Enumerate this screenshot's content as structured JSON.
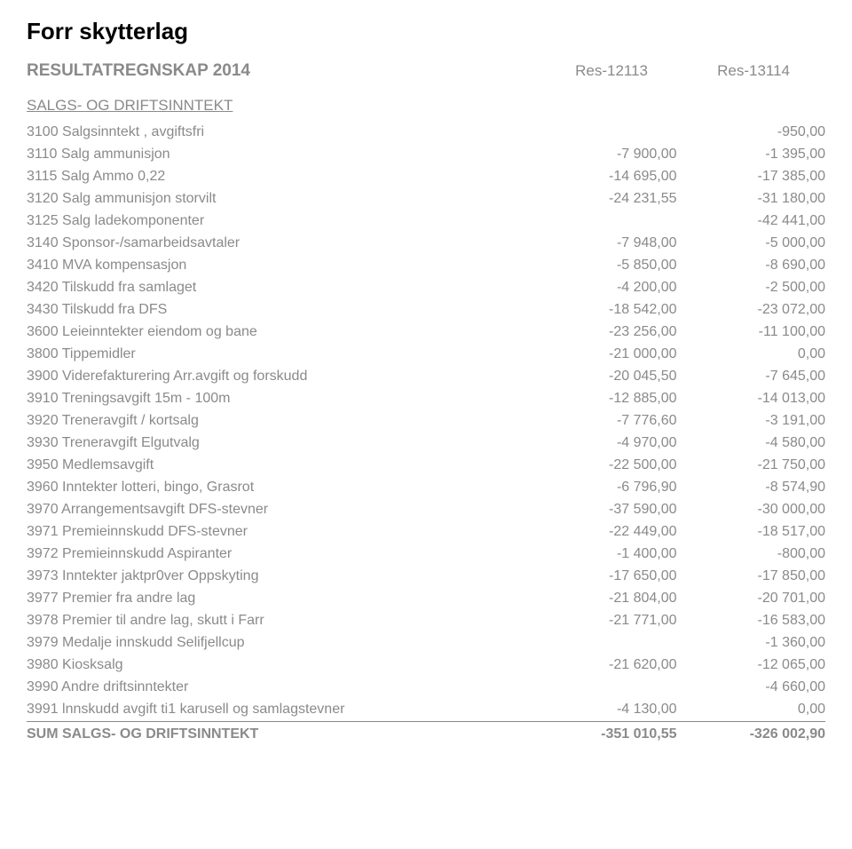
{
  "page_title": "Forr skytterlag",
  "report_title": "RESULTATREGNSKAP 2014",
  "col1": "Res-12113",
  "col2": "Res-13114",
  "section_title": "SALGS- OG DRIFTSINNTEKT",
  "rows": [
    {
      "label": "3100 Salgsinntekt , avgiftsfri",
      "v1": "",
      "v2": "-950,00"
    },
    {
      "label": "3110 Salg ammunisjon",
      "v1": "-7 900,00",
      "v2": "-1 395,00"
    },
    {
      "label": "3115 Salg Ammo 0,22",
      "v1": "-14 695,00",
      "v2": "-17 385,00"
    },
    {
      "label": "3120 Salg ammunisjon storvilt",
      "v1": "-24 231,55",
      "v2": "-31 180,00"
    },
    {
      "label": "3125 Salg ladekomponenter",
      "v1": "",
      "v2": "-42 441,00"
    },
    {
      "label": "3140 Sponsor-/samarbeidsavtaler",
      "v1": "-7 948,00",
      "v2": "-5 000,00"
    },
    {
      "label": "3410 MVA kompensasjon",
      "v1": "-5 850,00",
      "v2": "-8 690,00"
    },
    {
      "label": "3420 Tilskudd fra samlaget",
      "v1": "-4 200,00",
      "v2": "-2 500,00"
    },
    {
      "label": "3430 Tilskudd fra DFS",
      "v1": "-18 542,00",
      "v2": "-23 072,00"
    },
    {
      "label": "3600 Leieinntekter eiendom og bane",
      "v1": "-23 256,00",
      "v2": "-11 100,00"
    },
    {
      "label": "3800 Tippemidler",
      "v1": "-21 000,00",
      "v2": "0,00"
    },
    {
      "label": "3900 Viderefakturering Arr.avgift og forskudd",
      "v1": "-20 045,50",
      "v2": "-7 645,00"
    },
    {
      "label": "3910 Treningsavgift 15m - 100m",
      "v1": "-12 885,00",
      "v2": "-14 013,00"
    },
    {
      "label": "3920 Treneravgift / kortsalg",
      "v1": "-7 776,60",
      "v2": "-3 191,00"
    },
    {
      "label": "3930 Treneravgift Elgutvalg",
      "v1": "-4 970,00",
      "v2": "-4 580,00"
    },
    {
      "label": "3950 Medlemsavgift",
      "v1": "-22 500,00",
      "v2": "-21 750,00"
    },
    {
      "label": "3960 Inntekter lotteri, bingo, Grasrot",
      "v1": "-6 796,90",
      "v2": "-8 574,90"
    },
    {
      "label": "3970 Arrangementsavgift DFS-stevner",
      "v1": "-37 590,00",
      "v2": "-30 000,00"
    },
    {
      "label": "3971 Premieinnskudd DFS-stevner",
      "v1": "-22 449,00",
      "v2": "-18 517,00"
    },
    {
      "label": "3972 Premieinnskudd Aspiranter",
      "v1": "-1 400,00",
      "v2": "-800,00"
    },
    {
      "label": "3973 Inntekter jaktpr0ver Oppskyting",
      "v1": "-17 650,00",
      "v2": "-17 850,00"
    },
    {
      "label": "3977 Premier fra andre lag",
      "v1": "-21 804,00",
      "v2": "-20 701,00"
    },
    {
      "label": "3978 Premier til andre lag, skutt i Farr",
      "v1": "-21 771,00",
      "v2": "-16 583,00"
    },
    {
      "label": "3979 Medalje innskudd Selifjellcup",
      "v1": "",
      "v2": "-1 360,00"
    },
    {
      "label": "3980 Kiosksalg",
      "v1": "-21 620,00",
      "v2": "-12 065,00"
    },
    {
      "label": "3990 Andre driftsinntekter",
      "v1": "",
      "v2": "-4 660,00"
    },
    {
      "label": "3991 lnnskudd avgift ti1 karusell og samlagstevner",
      "v1": "-4 130,00",
      "v2": "0,00"
    }
  ],
  "sum": {
    "label": "SUM SALGS- OG DRIFTSINNTEKT",
    "v1": "-351 010,55",
    "v2": "-326 002,90"
  }
}
